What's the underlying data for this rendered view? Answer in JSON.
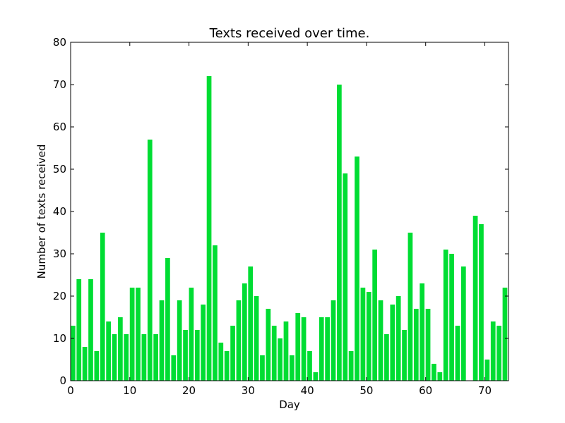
{
  "chart_data": {
    "type": "bar",
    "title": "Texts received over time.",
    "xlabel": "Day",
    "ylabel": "Number of texts received",
    "xlim": [
      0,
      74
    ],
    "ylim": [
      0,
      80
    ],
    "x_ticks": [
      0,
      10,
      20,
      30,
      40,
      50,
      60,
      70
    ],
    "y_ticks": [
      0,
      10,
      20,
      30,
      40,
      50,
      60,
      70,
      80
    ],
    "grid": false,
    "bar_color": "#00dd33",
    "x": [
      0,
      1,
      2,
      3,
      4,
      5,
      6,
      7,
      8,
      9,
      10,
      11,
      12,
      13,
      14,
      15,
      16,
      17,
      18,
      19,
      20,
      21,
      22,
      23,
      24,
      25,
      26,
      27,
      28,
      29,
      30,
      31,
      32,
      33,
      34,
      35,
      36,
      37,
      38,
      39,
      40,
      41,
      42,
      43,
      44,
      45,
      46,
      47,
      48,
      49,
      50,
      51,
      52,
      53,
      54,
      55,
      56,
      57,
      58,
      59,
      60,
      61,
      62,
      63,
      64,
      65,
      66,
      67,
      68,
      69,
      70,
      71,
      72,
      73
    ],
    "values": [
      13,
      24,
      8,
      24,
      7,
      35,
      14,
      11,
      15,
      11,
      22,
      22,
      11,
      57,
      11,
      19,
      29,
      6,
      19,
      12,
      22,
      12,
      18,
      72,
      32,
      9,
      7,
      13,
      19,
      23,
      27,
      20,
      6,
      17,
      13,
      10,
      14,
      6,
      16,
      15,
      7,
      2,
      15,
      15,
      19,
      70,
      49,
      7,
      53,
      22,
      21,
      31,
      19,
      11,
      18,
      20,
      12,
      35,
      17,
      23,
      17,
      4,
      2,
      31,
      30,
      13,
      27,
      0,
      39,
      37,
      5,
      14,
      13,
      22
    ]
  }
}
